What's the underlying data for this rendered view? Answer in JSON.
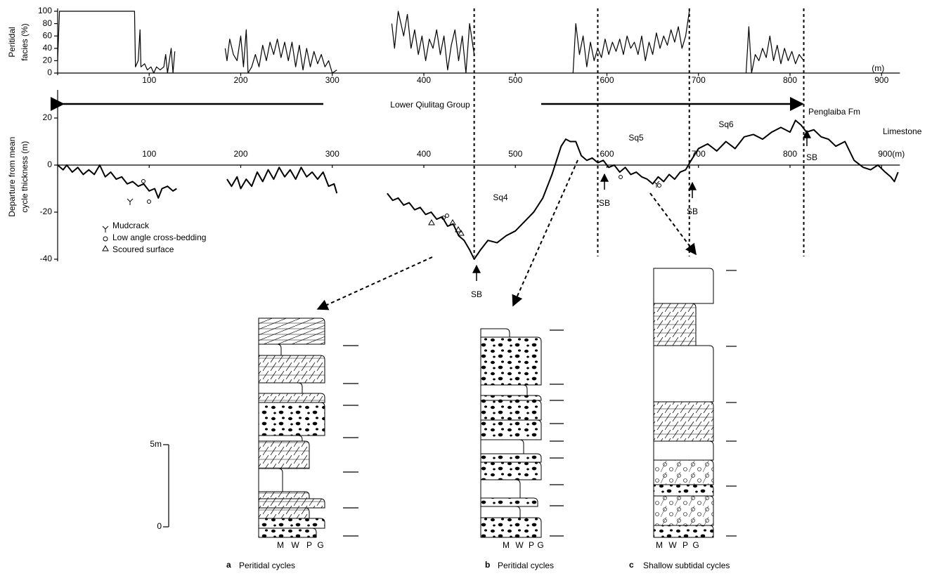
{
  "chart_data": [
    {
      "type": "line",
      "ylabel": [
        "Peritidal",
        "facies (%)"
      ],
      "xunit": "(m)",
      "color": "#000000",
      "xlim": [
        0,
        920
      ],
      "ylim": [
        0,
        100
      ],
      "yticks": [
        0,
        20,
        40,
        60,
        80,
        100
      ],
      "xticks": [
        100,
        200,
        300,
        400,
        500,
        600,
        700,
        800,
        900
      ],
      "x": [
        0,
        2,
        84,
        85,
        88,
        90,
        91,
        95,
        98,
        102,
        105,
        108,
        112,
        116,
        118,
        120,
        124,
        126,
        128,
        150,
        183,
        185,
        188,
        192,
        196,
        200,
        203,
        206,
        208,
        212,
        216,
        220,
        224,
        228,
        232,
        236,
        240,
        244,
        248,
        252,
        256,
        260,
        264,
        268,
        272,
        276,
        280,
        284,
        288,
        292,
        296,
        300,
        305,
        335,
        365,
        368,
        372,
        378,
        382,
        386,
        390,
        394,
        398,
        402,
        406,
        410,
        414,
        418,
        422,
        426,
        430,
        434,
        438,
        442,
        446,
        450,
        455,
        510,
        563,
        566,
        570,
        574,
        578,
        582,
        586,
        590,
        594,
        598,
        602,
        606,
        610,
        614,
        618,
        622,
        626,
        630,
        634,
        638,
        642,
        646,
        650,
        654,
        658,
        662,
        666,
        670,
        674,
        678,
        682,
        686,
        690,
        720,
        752,
        755,
        758,
        762,
        766,
        770,
        774,
        778,
        782,
        786,
        790,
        794,
        798,
        802,
        806,
        810,
        815
      ],
      "values": [
        20,
        100,
        100,
        10,
        20,
        70,
        10,
        15,
        5,
        10,
        0,
        10,
        5,
        10,
        30,
        0,
        40,
        0,
        35,
        null,
        40,
        20,
        55,
        30,
        20,
        60,
        10,
        70,
        0,
        10,
        30,
        10,
        45,
        20,
        50,
        30,
        55,
        25,
        50,
        20,
        50,
        10,
        45,
        5,
        40,
        10,
        35,
        15,
        30,
        10,
        20,
        0,
        5,
        null,
        80,
        40,
        100,
        60,
        95,
        40,
        70,
        30,
        60,
        20,
        55,
        40,
        70,
        30,
        60,
        5,
        45,
        70,
        20,
        60,
        0,
        80,
        30,
        null,
        0,
        80,
        30,
        60,
        10,
        50,
        20,
        40,
        25,
        55,
        30,
        50,
        35,
        55,
        30,
        60,
        40,
        50,
        30,
        60,
        20,
        50,
        30,
        65,
        40,
        60,
        45,
        70,
        50,
        75,
        40,
        60,
        100,
        null,
        0,
        75,
        0,
        30,
        20,
        40,
        25,
        60,
        20,
        45,
        15,
        40,
        20,
        35,
        15,
        30,
        20
      ]
    },
    {
      "type": "line",
      "ylabel": [
        "Departure from mean",
        "cycle thickness (m)"
      ],
      "color": "#000000",
      "xlim": [
        0,
        920
      ],
      "ylim": [
        -40,
        30
      ],
      "yticks": [
        -40,
        -20,
        0,
        20
      ],
      "xticks": [
        100,
        200,
        300,
        400,
        500,
        600,
        700,
        800,
        {
          "value": 900,
          "label": "900(m)"
        }
      ],
      "x": [
        0,
        6,
        10,
        16,
        22,
        28,
        34,
        40,
        46,
        52,
        58,
        64,
        70,
        76,
        82,
        88,
        94,
        100,
        106,
        110,
        114,
        120,
        126,
        130,
        155,
        185,
        190,
        196,
        200,
        206,
        212,
        218,
        224,
        230,
        236,
        242,
        248,
        254,
        260,
        266,
        272,
        278,
        284,
        290,
        296,
        302,
        305,
        335,
        360,
        366,
        372,
        378,
        384,
        390,
        396,
        402,
        408,
        414,
        420,
        426,
        432,
        438,
        444,
        450,
        455,
        462,
        470,
        480,
        490,
        500,
        510,
        520,
        530,
        540,
        550,
        555,
        560,
        566,
        572,
        578,
        584,
        590,
        596,
        602,
        608,
        614,
        620,
        626,
        632,
        638,
        644,
        650,
        656,
        662,
        668,
        674,
        680,
        686,
        692,
        700,
        710,
        720,
        730,
        740,
        750,
        760,
        770,
        780,
        790,
        800,
        806,
        812,
        818,
        826,
        834,
        842,
        850,
        860,
        870,
        880,
        888,
        896,
        904,
        910,
        914,
        918
      ],
      "values": [
        0,
        -2,
        0,
        -3,
        -1,
        -4,
        -2,
        -4,
        0,
        -5,
        -3,
        -6,
        -5,
        -8,
        -7,
        -9,
        -8,
        -11,
        -10,
        -14,
        -10,
        -9,
        -11,
        -10,
        null,
        -6,
        -9,
        -5,
        -10,
        -6,
        -9,
        -3,
        -7,
        -2,
        -6,
        -1,
        -5,
        -2,
        -6,
        -1,
        -5,
        -3,
        -6,
        -3,
        -9,
        -8,
        -12,
        null,
        -12,
        -15,
        -14,
        -17,
        -16,
        -19,
        -18,
        -21,
        -20,
        -23,
        -22,
        -26,
        -25,
        -30,
        -32,
        -36,
        -40,
        -36,
        -32,
        -33,
        -30,
        -28,
        -24,
        -20,
        -14,
        -4,
        8,
        11,
        10,
        10,
        4,
        2,
        3,
        1,
        2,
        -1,
        0,
        -3,
        -1,
        -4,
        -3,
        -5,
        -6,
        -8,
        -5,
        -7,
        -4,
        -6,
        -3,
        -2,
        2,
        7,
        9,
        6,
        10,
        7,
        12,
        13,
        11,
        14,
        16,
        14,
        19,
        17,
        14,
        15,
        12,
        11,
        8,
        10,
        2,
        -1,
        -2,
        0,
        -3,
        -5,
        -7,
        -3
      ],
      "boundaries": [
        455,
        590,
        690,
        815
      ],
      "annotations": [
        "Lower Qiulitag Group",
        "Penglaiba Fm",
        "Limestone",
        "Sq4",
        "Sq5",
        "Sq6",
        "SB",
        "SB",
        "SB",
        "SB"
      ],
      "legend": [
        "Mudcrack",
        "Low angle cross-bedding",
        "Scoured surface"
      ]
    }
  ],
  "scale_bar": {
    "top": "5m",
    "bottom": "0"
  },
  "columns": [
    {
      "letter": "a",
      "caption": "Peritidal cycles",
      "grain_labels": [
        "M",
        "W",
        "P",
        "G"
      ]
    },
    {
      "letter": "b",
      "caption": "Peritidal cycles",
      "grain_labels": [
        "M",
        "W",
        "P",
        "G"
      ]
    },
    {
      "letter": "c",
      "caption": "Shallow subtidal cycles",
      "grain_labels": [
        "M",
        "W",
        "P",
        "G"
      ]
    }
  ]
}
